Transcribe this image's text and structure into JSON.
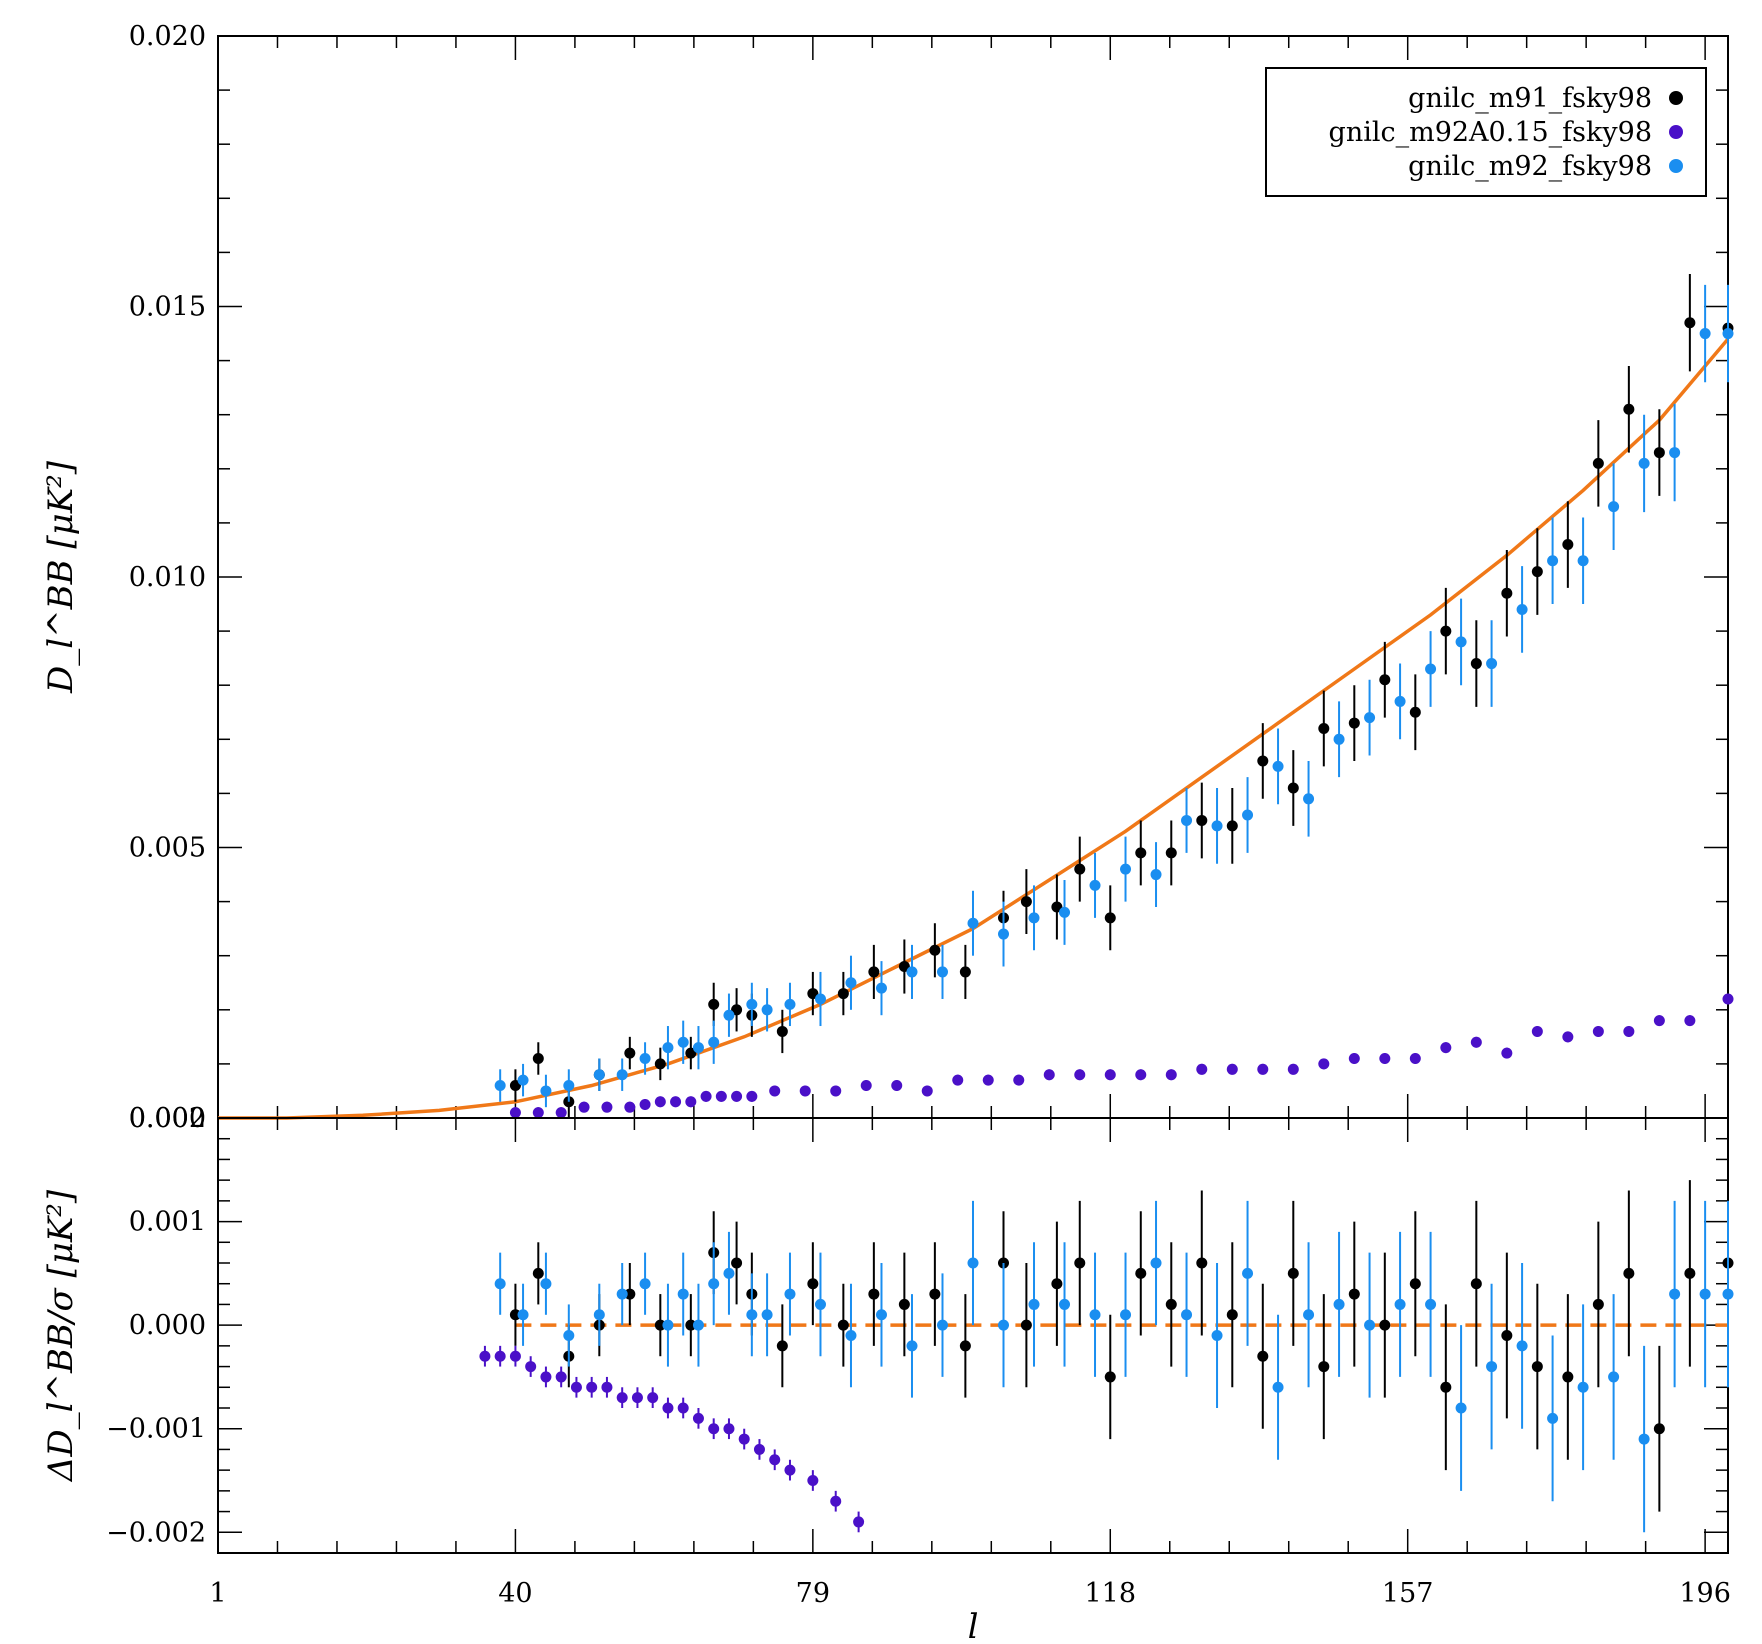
{
  "chart_data": {
    "type": "scatter",
    "x_ticks": [
      1,
      40,
      79,
      118,
      157,
      196
    ],
    "xlabel": "l",
    "xlim": [
      1,
      199
    ],
    "legend": {
      "placement": "top-right",
      "entries": [
        {
          "name": "gnilc_m91_fsky98",
          "color": "#000000"
        },
        {
          "name": "gnilc_m92A0.15_fsky98",
          "color": "#4a10c8"
        },
        {
          "name": "gnilc_m92_fsky98",
          "color": "#1a8ef0"
        }
      ]
    },
    "model_color": "#f07818",
    "panels": [
      {
        "id": "top",
        "ylabel": "D_l^BB [μK²]",
        "ylim": [
          0,
          0.02
        ],
        "y_ticks": [
          "0.000",
          "0.005",
          "0.010",
          "0.015",
          "0.020"
        ],
        "model": {
          "style": "solid",
          "x": [
            1,
            10,
            20,
            30,
            40,
            50,
            60,
            70,
            80,
            90,
            100,
            110,
            120,
            130,
            140,
            150,
            160,
            170,
            180,
            190,
            199
          ],
          "y": [
            0.0,
            0.0,
            5e-05,
            0.00014,
            0.0003,
            0.0006,
            0.001,
            0.0015,
            0.0021,
            0.0028,
            0.0035,
            0.0044,
            0.0053,
            0.0063,
            0.0073,
            0.0083,
            0.0093,
            0.0104,
            0.0116,
            0.0129,
            0.0144
          ]
        },
        "series": [
          {
            "name": "gnilc_m91_fsky98",
            "x": [
              40,
              43,
              47,
              51,
              55,
              59,
              63,
              66,
              69,
              71,
              75,
              79,
              83,
              87,
              91,
              95,
              99,
              104,
              107,
              111,
              114,
              118,
              122,
              126,
              130,
              134,
              138,
              142,
              146,
              150,
              154,
              158,
              162,
              166,
              170,
              174,
              178,
              182,
              186,
              190,
              194,
              199
            ],
            "y": [
              0.0006,
              0.0011,
              0.0003,
              0.0008,
              0.0012,
              0.001,
              0.0012,
              0.0021,
              0.002,
              0.0019,
              0.0016,
              0.0023,
              0.0023,
              0.0027,
              0.0028,
              0.0031,
              0.0027,
              0.0037,
              0.004,
              0.0039,
              0.0046,
              0.0037,
              0.0049,
              0.0049,
              0.0055,
              0.0054,
              0.0066,
              0.0061,
              0.0072,
              0.0073,
              0.0081,
              0.0075,
              0.009,
              0.0084,
              0.0097,
              0.0101,
              0.0106,
              0.0121,
              0.0131,
              0.0123,
              0.0147,
              0.0146
            ],
            "err": [
              0.0003,
              0.0003,
              0.0003,
              0.0003,
              0.0003,
              0.0003,
              0.0003,
              0.0004,
              0.0004,
              0.0004,
              0.0004,
              0.0004,
              0.0004,
              0.0005,
              0.0005,
              0.0005,
              0.0005,
              0.0005,
              0.0006,
              0.0006,
              0.0006,
              0.0006,
              0.0006,
              0.0006,
              0.0007,
              0.0007,
              0.0007,
              0.0007,
              0.0007,
              0.0007,
              0.0007,
              0.0007,
              0.0008,
              0.0008,
              0.0008,
              0.0008,
              0.0008,
              0.0008,
              0.0008,
              0.0008,
              0.0009,
              0.0009
            ]
          },
          {
            "name": "gnilc_m92A0.15_fsky98",
            "x": [
              40,
              43,
              46,
              49,
              52,
              55,
              57,
              59,
              61,
              63,
              65,
              67,
              69,
              71,
              74,
              78,
              82,
              86,
              90,
              94,
              98,
              102,
              106,
              110,
              114,
              118,
              122,
              126,
              130,
              134,
              138,
              142,
              146,
              150,
              154,
              158,
              162,
              166,
              170,
              174,
              178,
              182,
              186,
              190,
              194,
              199
            ],
            "y": [
              0.0001,
              0.0001,
              0.0001,
              0.0002,
              0.0002,
              0.0002,
              0.00025,
              0.0003,
              0.0003,
              0.0003,
              0.0004,
              0.0004,
              0.0004,
              0.0004,
              0.0005,
              0.0005,
              0.0005,
              0.0006,
              0.0006,
              0.0005,
              0.0007,
              0.0007,
              0.0007,
              0.0008,
              0.0008,
              0.0008,
              0.0008,
              0.0008,
              0.0009,
              0.0009,
              0.0009,
              0.0009,
              0.001,
              0.0011,
              0.0011,
              0.0011,
              0.0013,
              0.0014,
              0.0012,
              0.0016,
              0.0015,
              0.0016,
              0.0016,
              0.0018,
              0.0018,
              0.0022
            ],
            "err": [
              0.0001,
              0.0001,
              0.0001,
              0.0001,
              0.0001,
              0.0001,
              0.0001,
              0.0001,
              0.0001,
              0.0001,
              0.0001,
              0.0001,
              0.0001,
              0.0001,
              0.0001,
              0.0001,
              0.0001,
              0.0001,
              0.0001,
              0.0001,
              0.0001,
              0.0001,
              0.0001,
              0.0001,
              0.0001,
              0.0001,
              0.0001,
              0.0001,
              0.0001,
              0.0001,
              0.0001,
              0.0001,
              0.0001,
              0.0001,
              0.0001,
              0.0001,
              0.0001,
              0.0001,
              0.0001,
              0.0001,
              0.0001,
              0.0001,
              0.0001,
              0.0001,
              0.0001,
              0.0001
            ]
          },
          {
            "name": "gnilc_m92_fsky98",
            "x": [
              38,
              41,
              44,
              47,
              51,
              54,
              57,
              60,
              62,
              64,
              66,
              68,
              71,
              73,
              76,
              80,
              84,
              88,
              92,
              96,
              100,
              104,
              108,
              112,
              116,
              120,
              124,
              128,
              132,
              136,
              140,
              144,
              148,
              152,
              156,
              160,
              164,
              168,
              172,
              176,
              180,
              184,
              188,
              192,
              196,
              199
            ],
            "y": [
              0.0006,
              0.0007,
              0.0005,
              0.0006,
              0.0008,
              0.0008,
              0.0011,
              0.0013,
              0.0014,
              0.0013,
              0.0014,
              0.0019,
              0.0021,
              0.002,
              0.0021,
              0.0022,
              0.0025,
              0.0024,
              0.0027,
              0.0027,
              0.0036,
              0.0034,
              0.0037,
              0.0038,
              0.0043,
              0.0046,
              0.0045,
              0.0055,
              0.0054,
              0.0056,
              0.0065,
              0.0059,
              0.007,
              0.0074,
              0.0077,
              0.0083,
              0.0088,
              0.0084,
              0.0094,
              0.0103,
              0.0103,
              0.0113,
              0.0121,
              0.0123,
              0.0145,
              0.0145
            ],
            "err": [
              0.0003,
              0.0003,
              0.0003,
              0.0003,
              0.0003,
              0.0003,
              0.0003,
              0.0004,
              0.0004,
              0.0004,
              0.0004,
              0.0004,
              0.0004,
              0.0004,
              0.0004,
              0.0005,
              0.0005,
              0.0005,
              0.0005,
              0.0005,
              0.0006,
              0.0006,
              0.0006,
              0.0006,
              0.0006,
              0.0006,
              0.0006,
              0.0006,
              0.0007,
              0.0007,
              0.0007,
              0.0007,
              0.0007,
              0.0007,
              0.0007,
              0.0007,
              0.0008,
              0.0008,
              0.0008,
              0.0008,
              0.0008,
              0.0008,
              0.0009,
              0.0009,
              0.0009,
              0.0009
            ]
          }
        ]
      },
      {
        "id": "bottom",
        "ylabel": "ΔD_l^BB/σ [μK²]",
        "ylim": [
          -0.0022,
          0.002
        ],
        "y_ticks": [
          "−0.002",
          "−0.001",
          "0.000",
          "0.001",
          "0.002"
        ],
        "model": {
          "style": "dashed",
          "x": [
            40,
            199
          ],
          "y": [
            0.0,
            0.0
          ]
        },
        "series": [
          {
            "name": "gnilc_m91_fsky98",
            "x": [
              40,
              43,
              47,
              51,
              55,
              59,
              63,
              66,
              69,
              71,
              75,
              79,
              83,
              87,
              91,
              95,
              99,
              104,
              107,
              111,
              114,
              118,
              122,
              126,
              130,
              134,
              138,
              142,
              146,
              150,
              154,
              158,
              162,
              166,
              170,
              174,
              178,
              182,
              186,
              190,
              194,
              199
            ],
            "y": [
              0.0001,
              0.0005,
              -0.0003,
              0.0,
              0.0003,
              0.0,
              0.0,
              0.0007,
              0.0006,
              0.0003,
              -0.0002,
              0.0004,
              0.0,
              0.0003,
              0.0002,
              0.0003,
              -0.0002,
              0.0006,
              0.0,
              0.0004,
              0.0006,
              -0.0005,
              0.0005,
              0.0002,
              0.0006,
              0.0001,
              -0.0003,
              0.0005,
              -0.0004,
              0.0003,
              0.0,
              0.0004,
              -0.0006,
              0.0004,
              -0.0001,
              -0.0004,
              -0.0005,
              0.0002,
              0.0005,
              -0.001,
              0.0005,
              0.0006
            ],
            "err": [
              0.0003,
              0.0003,
              0.0003,
              0.0003,
              0.0003,
              0.0003,
              0.0003,
              0.0004,
              0.0004,
              0.0004,
              0.0004,
              0.0004,
              0.0004,
              0.0005,
              0.0005,
              0.0005,
              0.0005,
              0.0005,
              0.0006,
              0.0006,
              0.0006,
              0.0006,
              0.0006,
              0.0006,
              0.0007,
              0.0007,
              0.0007,
              0.0007,
              0.0007,
              0.0007,
              0.0007,
              0.0007,
              0.0008,
              0.0008,
              0.0008,
              0.0008,
              0.0008,
              0.0008,
              0.0008,
              0.0008,
              0.0009,
              0.0009
            ]
          },
          {
            "name": "gnilc_m92A0.15_fsky98",
            "x": [
              36,
              38,
              40,
              42,
              44,
              46,
              48,
              50,
              52,
              54,
              56,
              58,
              60,
              62,
              64,
              66,
              68,
              70,
              72,
              74,
              76,
              79,
              82,
              85
            ],
            "y": [
              -0.0003,
              -0.0003,
              -0.0003,
              -0.0004,
              -0.0005,
              -0.0005,
              -0.0006,
              -0.0006,
              -0.0006,
              -0.0007,
              -0.0007,
              -0.0007,
              -0.0008,
              -0.0008,
              -0.0009,
              -0.001,
              -0.001,
              -0.0011,
              -0.0012,
              -0.0013,
              -0.0014,
              -0.0015,
              -0.0017,
              -0.0019
            ],
            "err": [
              0.0001,
              0.0001,
              0.0001,
              0.0001,
              0.0001,
              0.0001,
              0.0001,
              0.0001,
              0.0001,
              0.0001,
              0.0001,
              0.0001,
              0.0001,
              0.0001,
              0.0001,
              0.0001,
              0.0001,
              0.0001,
              0.0001,
              0.0001,
              0.0001,
              0.0001,
              0.0001,
              0.0001
            ]
          },
          {
            "name": "gnilc_m92_fsky98",
            "x": [
              38,
              41,
              44,
              47,
              51,
              54,
              57,
              60,
              62,
              64,
              66,
              68,
              71,
              73,
              76,
              80,
              84,
              88,
              92,
              96,
              100,
              104,
              108,
              112,
              116,
              120,
              124,
              128,
              132,
              136,
              140,
              144,
              148,
              152,
              156,
              160,
              164,
              168,
              172,
              176,
              180,
              184,
              188,
              192,
              196,
              199
            ],
            "y": [
              0.0004,
              0.0001,
              0.0004,
              -0.0001,
              0.0001,
              0.0003,
              0.0004,
              0.0,
              0.0003,
              0.0,
              0.0004,
              0.0005,
              0.0001,
              0.0001,
              0.0003,
              0.0002,
              -0.0001,
              0.0001,
              -0.0002,
              0.0,
              0.0006,
              0.0,
              0.0002,
              0.0002,
              0.0001,
              0.0001,
              0.0006,
              0.0001,
              -0.0001,
              0.0005,
              -0.0006,
              0.0001,
              0.0002,
              0.0,
              0.0002,
              0.0002,
              -0.0008,
              -0.0004,
              -0.0002,
              -0.0009,
              -0.0006,
              -0.0005,
              -0.0011,
              0.0003,
              0.0003,
              0.0003
            ],
            "err": [
              0.0003,
              0.0003,
              0.0003,
              0.0003,
              0.0003,
              0.0003,
              0.0003,
              0.0004,
              0.0004,
              0.0004,
              0.0004,
              0.0004,
              0.0004,
              0.0004,
              0.0004,
              0.0005,
              0.0005,
              0.0005,
              0.0005,
              0.0005,
              0.0006,
              0.0006,
              0.0006,
              0.0006,
              0.0006,
              0.0006,
              0.0006,
              0.0006,
              0.0007,
              0.0007,
              0.0007,
              0.0007,
              0.0007,
              0.0007,
              0.0007,
              0.0007,
              0.0008,
              0.0008,
              0.0008,
              0.0008,
              0.0008,
              0.0008,
              0.0009,
              0.0009,
              0.0009,
              0.0009
            ]
          }
        ]
      }
    ]
  }
}
